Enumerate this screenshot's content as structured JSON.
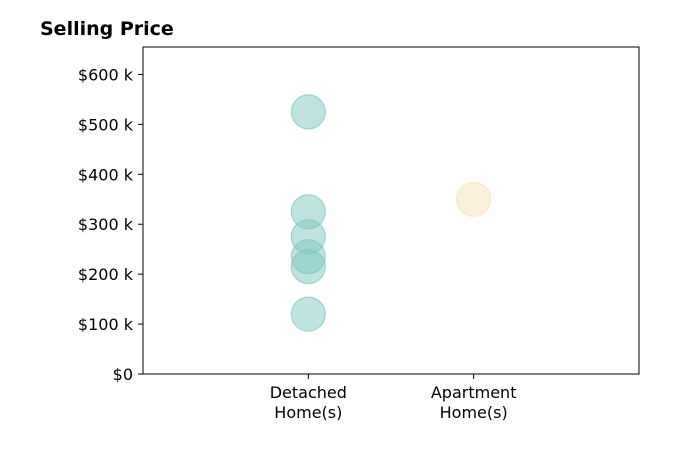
{
  "chart_data": {
    "type": "scatter",
    "title": "Selling Price",
    "xlabel": "",
    "ylabel": "",
    "categories": [
      "Detached\nHome(s)",
      "Apartment\nHome(s)"
    ],
    "x_positions": [
      1,
      2
    ],
    "xlim": [
      0,
      3
    ],
    "ylim": [
      0,
      655000
    ],
    "y_ticks": [
      0,
      100000,
      200000,
      300000,
      400000,
      500000,
      600000
    ],
    "y_tick_labels": [
      "$0",
      "$100 k",
      "$200 k",
      "$300 k",
      "$400 k",
      "$500 k",
      "$600 k"
    ],
    "grid": false,
    "series": [
      {
        "color": "#7fc7bd",
        "points": [
          {
            "x": 1,
            "y": 525000
          },
          {
            "x": 1,
            "y": 325000
          },
          {
            "x": 1,
            "y": 275000
          },
          {
            "x": 1,
            "y": 235000
          },
          {
            "x": 1,
            "y": 215000
          },
          {
            "x": 1,
            "y": 120000
          }
        ]
      },
      {
        "color": "#f7e3b8",
        "points": [
          {
            "x": 2,
            "y": 350000
          }
        ]
      }
    ]
  }
}
